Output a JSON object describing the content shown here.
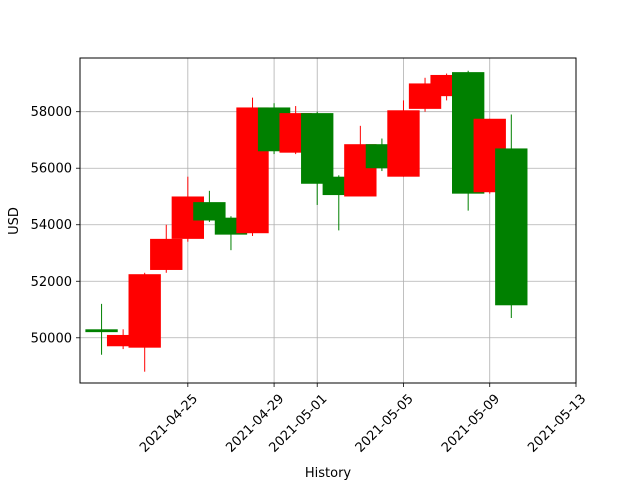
{
  "chart_data": {
    "type": "candlestick",
    "xlabel": "History",
    "ylabel": "USD",
    "grid": true,
    "colors": {
      "up": "#008000",
      "down": "#ff0000",
      "grid": "#b0b0b0",
      "axis": "#000000"
    },
    "xlim": [
      "2021-04-20",
      "2021-05-13"
    ],
    "ylim": [
      48400,
      59900
    ],
    "x_ticks": [
      "2021-04-25",
      "2021-04-29",
      "2021-05-01",
      "2021-05-05",
      "2021-05-09",
      "2021-05-13"
    ],
    "y_ticks": [
      50000,
      52000,
      54000,
      56000,
      58000
    ],
    "candles": [
      {
        "date": "2021-04-21",
        "open": 50200,
        "close": 50300,
        "high": 51200,
        "low": 49400
      },
      {
        "date": "2021-04-22",
        "open": 50100,
        "close": 49700,
        "high": 50300,
        "low": 49600
      },
      {
        "date": "2021-04-23",
        "open": 52250,
        "close": 49650,
        "high": 52300,
        "low": 48800
      },
      {
        "date": "2021-04-24",
        "open": 53500,
        "close": 52400,
        "high": 54000,
        "low": 52300
      },
      {
        "date": "2021-04-25",
        "open": 55000,
        "close": 53500,
        "high": 55700,
        "low": 53400
      },
      {
        "date": "2021-04-26",
        "open": 54150,
        "close": 54800,
        "high": 55200,
        "low": 54100
      },
      {
        "date": "2021-04-27",
        "open": 53650,
        "close": 54250,
        "high": 54300,
        "low": 53100
      },
      {
        "date": "2021-04-28",
        "open": 58150,
        "close": 53700,
        "high": 58500,
        "low": 53600
      },
      {
        "date": "2021-04-29",
        "open": 56600,
        "close": 58150,
        "high": 58300,
        "low": 56500
      },
      {
        "date": "2021-04-30",
        "open": 57950,
        "close": 56550,
        "high": 58200,
        "low": 56500
      },
      {
        "date": "2021-05-01",
        "open": 55450,
        "close": 57950,
        "high": 58000,
        "low": 54700
      },
      {
        "date": "2021-05-02",
        "open": 55050,
        "close": 55700,
        "high": 55750,
        "low": 53800
      },
      {
        "date": "2021-05-03",
        "open": 56850,
        "close": 55000,
        "high": 57500,
        "low": 55000
      },
      {
        "date": "2021-05-04",
        "open": 56000,
        "close": 56850,
        "high": 57050,
        "low": 55900
      },
      {
        "date": "2021-05-05",
        "open": 58050,
        "close": 55700,
        "high": 58400,
        "low": 55700
      },
      {
        "date": "2021-05-06",
        "open": 59000,
        "close": 58100,
        "high": 59200,
        "low": 58000
      },
      {
        "date": "2021-05-07",
        "open": 59300,
        "close": 58550,
        "high": 59350,
        "low": 58400
      },
      {
        "date": "2021-05-08",
        "open": 55100,
        "close": 59400,
        "high": 59450,
        "low": 54500
      },
      {
        "date": "2021-05-09",
        "open": 57750,
        "close": 55150,
        "high": 57750,
        "low": 55100
      },
      {
        "date": "2021-05-10",
        "open": 51150,
        "close": 56700,
        "high": 57900,
        "low": 50700
      }
    ]
  }
}
